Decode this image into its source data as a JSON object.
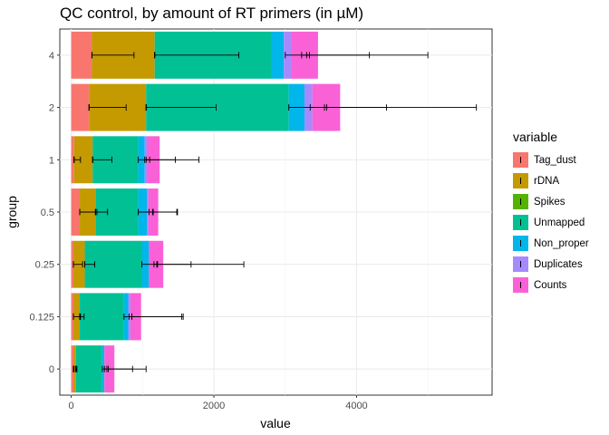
{
  "chart_data": {
    "type": "bar",
    "orientation": "horizontal",
    "stacked": true,
    "title": "QC control, by amount of RT primers (in µM)",
    "xlabel": "value",
    "ylabel": "group",
    "xlim": [
      -160,
      5900
    ],
    "xticks": [
      0,
      2000,
      4000
    ],
    "grid": true,
    "legend_position": "right",
    "categories": [
      "4",
      "2",
      "1",
      "0.5",
      "0.25",
      "0.125",
      "0"
    ],
    "series": [
      {
        "name": "Tag_dust",
        "color": "#F8766D",
        "values": [
          290,
          250,
          40,
          120,
          30,
          30,
          30
        ],
        "error_lo": [
          290,
          250,
          40,
          120,
          30,
          30,
          30
        ],
        "error_hi": [
          290,
          250,
          40,
          120,
          30,
          30,
          30
        ]
      },
      {
        "name": "rDNA",
        "color": "#C49A00",
        "values": [
          880,
          800,
          260,
          220,
          160,
          90,
          35
        ],
        "error_lo": [
          290,
          250,
          40,
          120,
          30,
          30,
          30
        ],
        "error_hi": [
          880,
          770,
          130,
          360,
          160,
          130,
          40
        ]
      },
      {
        "name": "Spikes",
        "color": "#53B400",
        "values": [
          0,
          0,
          0,
          0,
          0,
          0,
          0
        ],
        "error_lo": [
          1170,
          1050,
          300,
          340,
          190,
          120,
          65
        ],
        "error_hi": [
          1170,
          1050,
          300,
          340,
          190,
          120,
          65
        ]
      },
      {
        "name": "Unmapped",
        "color": "#00C094",
        "values": [
          1630,
          2000,
          640,
          600,
          800,
          620,
          370
        ],
        "error_lo": [
          1170,
          1050,
          300,
          340,
          190,
          120,
          65
        ],
        "error_hi": [
          2350,
          2030,
          570,
          510,
          330,
          180,
          80
        ]
      },
      {
        "name": "Non_proper",
        "color": "#00B6EB",
        "values": [
          180,
          220,
          90,
          120,
          100,
          60,
          30
        ],
        "error_lo": [
          3000,
          3050,
          940,
          940,
          990,
          740,
          435
        ],
        "error_hi": [
          4180,
          4420,
          1460,
          1480,
          1680,
          1550,
          860
        ]
      },
      {
        "name": "Duplicates",
        "color": "#A58AFF",
        "values": [
          100,
          110,
          30,
          20,
          0,
          30,
          0
        ],
        "error_lo": [
          3230,
          3350,
          1030,
          1090,
          1160,
          810,
          465
        ],
        "error_hi": [
          3340,
          3580,
          1100,
          1140,
          1200,
          850,
          500
        ]
      },
      {
        "name": "Counts",
        "color": "#FB61D7",
        "values": [
          380,
          390,
          180,
          140,
          200,
          150,
          140
        ],
        "error_lo": [
          3300,
          3550,
          1050,
          1150,
          1210,
          850,
          520
        ],
        "error_hi": [
          5000,
          5680,
          1790,
          1490,
          2420,
          1570,
          1050
        ]
      }
    ]
  }
}
